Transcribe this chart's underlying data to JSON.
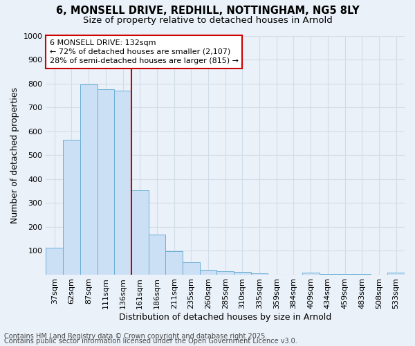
{
  "title_line1": "6, MONSELL DRIVE, REDHILL, NOTTINGHAM, NG5 8LY",
  "title_line2": "Size of property relative to detached houses in Arnold",
  "xlabel": "Distribution of detached houses by size in Arnold",
  "ylabel": "Number of detached properties",
  "bar_color": "#cce0f5",
  "bar_edge_color": "#6aaed6",
  "background_color": "#eaf1f8",
  "grid_color": "#d0dde8",
  "categories": [
    "37sqm",
    "62sqm",
    "87sqm",
    "111sqm",
    "136sqm",
    "161sqm",
    "186sqm",
    "211sqm",
    "235sqm",
    "260sqm",
    "285sqm",
    "310sqm",
    "335sqm",
    "359sqm",
    "384sqm",
    "409sqm",
    "434sqm",
    "459sqm",
    "483sqm",
    "508sqm",
    "533sqm"
  ],
  "values": [
    112,
    565,
    795,
    775,
    770,
    352,
    168,
    97,
    52,
    18,
    13,
    10,
    6,
    0,
    0,
    7,
    2,
    2,
    2,
    0,
    8
  ],
  "ylim": [
    0,
    1000
  ],
  "yticks": [
    0,
    100,
    200,
    300,
    400,
    500,
    600,
    700,
    800,
    900,
    1000
  ],
  "vline_x": 4.5,
  "vline_color": "#cc0000",
  "annotation_line1": "6 MONSELL DRIVE: 132sqm",
  "annotation_line2": "← 72% of detached houses are smaller (2,107)",
  "annotation_line3": "28% of semi-detached houses are larger (815) →",
  "annotation_box_color": "#ffffff",
  "annotation_box_edge_color": "#cc0000",
  "footnote_line1": "Contains HM Land Registry data © Crown copyright and database right 2025.",
  "footnote_line2": "Contains public sector information licensed under the Open Government Licence v3.0.",
  "title_fontsize": 10.5,
  "subtitle_fontsize": 9.5,
  "axis_label_fontsize": 9,
  "tick_fontsize": 8,
  "annotation_fontsize": 8,
  "footnote_fontsize": 7
}
